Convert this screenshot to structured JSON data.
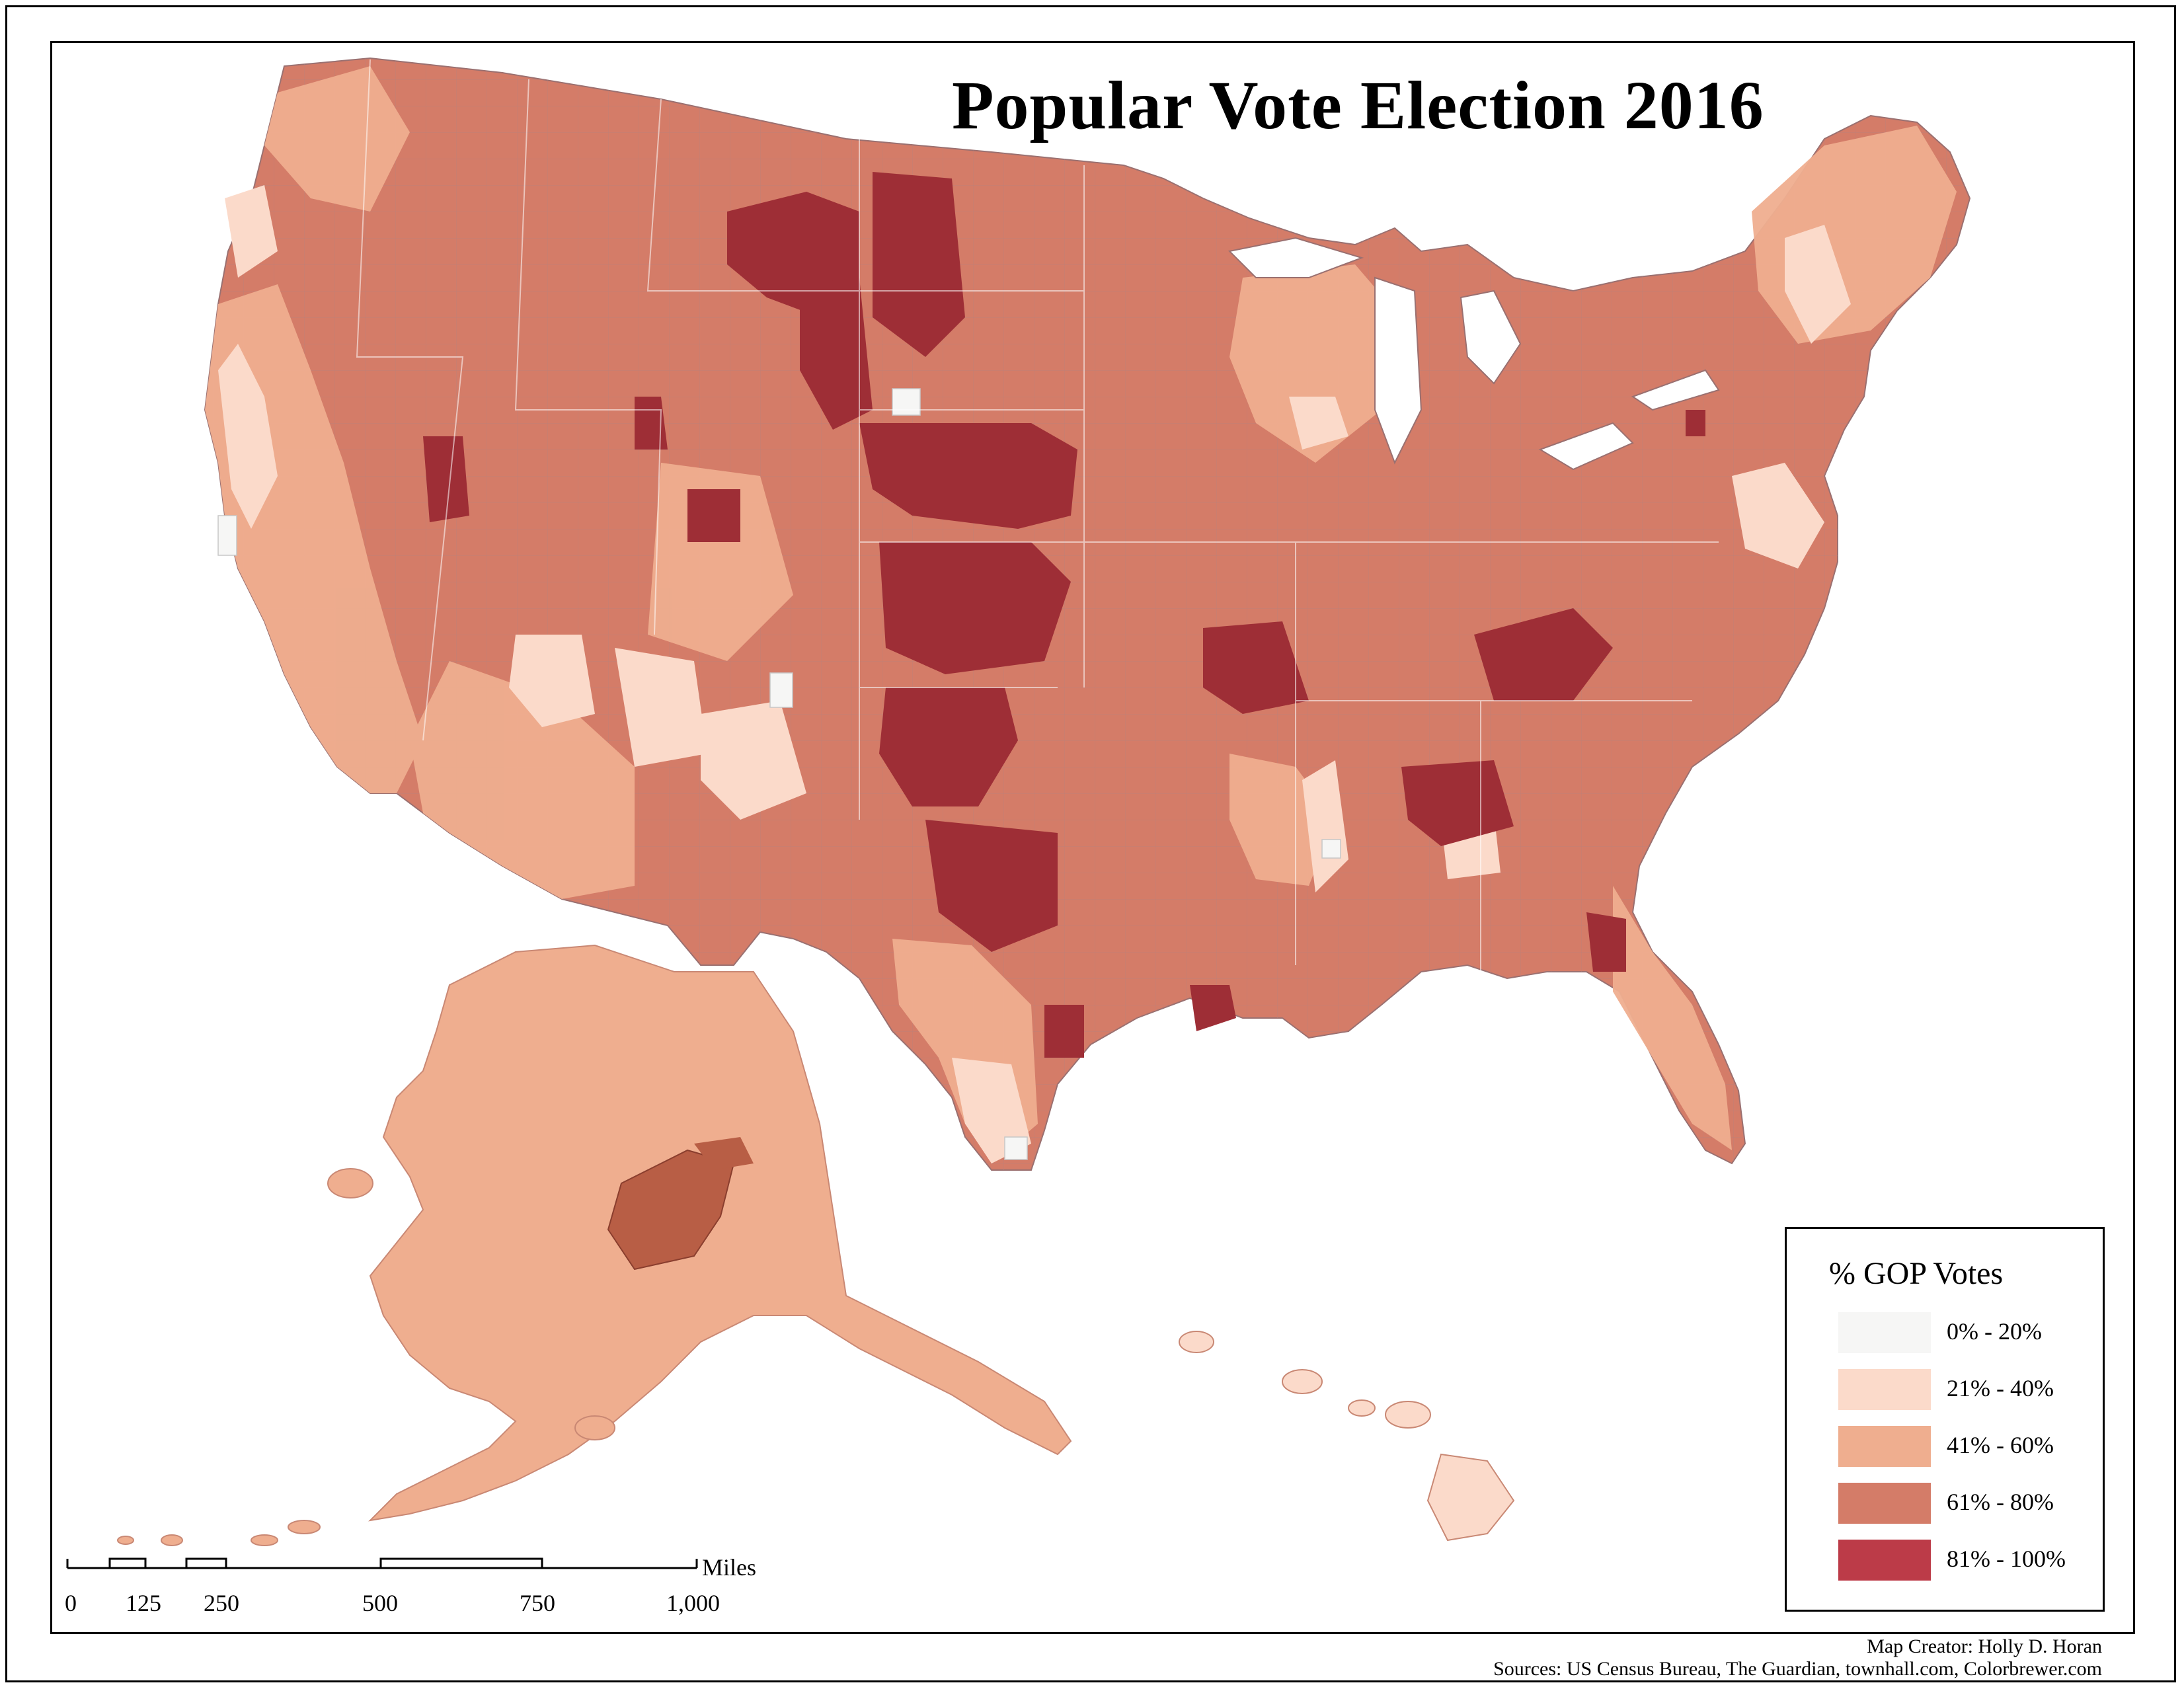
{
  "map": {
    "title": "Popular Vote Election 2016",
    "legend": {
      "title": "% GOP Votes",
      "items": [
        {
          "label": "0% - 20%",
          "color": "#f6f6f5"
        },
        {
          "label": "21% - 40%",
          "color": "#fbdaca"
        },
        {
          "label": "41% - 60%",
          "color": "#efae8f"
        },
        {
          "label": "61% - 80%",
          "color": "#d47c68"
        },
        {
          "label": "81% - 100%",
          "color": "#bc3b48"
        }
      ]
    },
    "scale_bar": {
      "unit": "Miles",
      "ticks": [
        "0",
        "125",
        "250",
        "500",
        "750",
        "1,000"
      ]
    },
    "credits": {
      "creator": "Map Creator: Holly D. Horan",
      "sources": "Sources: US Census Bureau, The Guardian, townhall.com, Colorbrewer.com"
    },
    "colors": {
      "class_0_20": "#f6f6f5",
      "class_21_40": "#fbdaca",
      "class_41_60": "#efae8f",
      "class_61_80": "#d47c68",
      "class_81_100": "#bc3b48",
      "county_81_100_on_map": "#9e2e36",
      "alaska_dark": "#b85e45"
    }
  }
}
